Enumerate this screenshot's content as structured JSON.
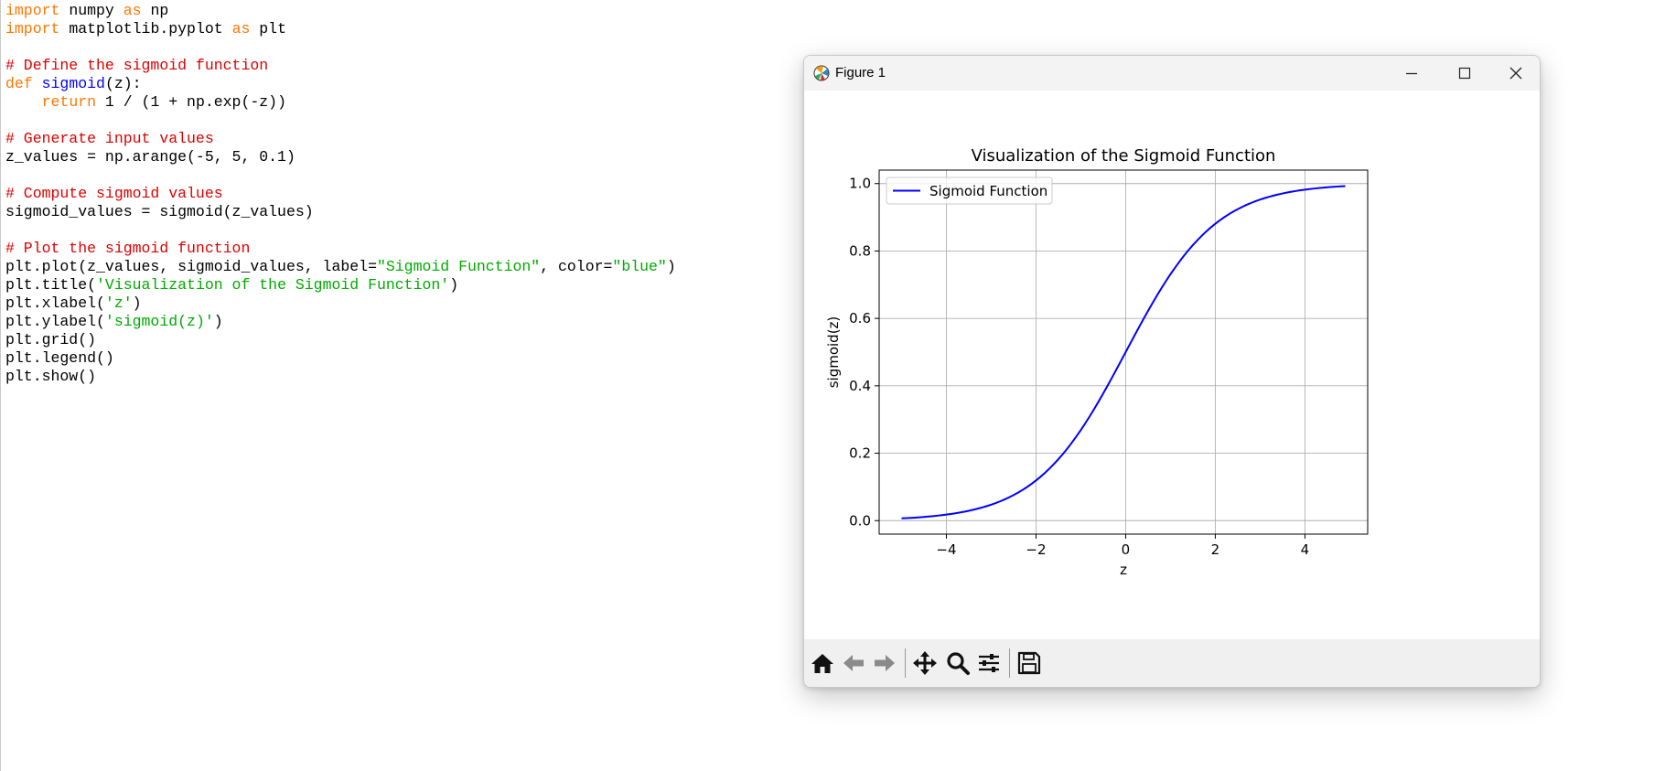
{
  "editor": {
    "lines": [
      [
        [
          "kw",
          "import"
        ],
        [
          "p",
          " numpy "
        ],
        [
          "kw",
          "as"
        ],
        [
          "p",
          " np"
        ]
      ],
      [
        [
          "kw",
          "import"
        ],
        [
          "p",
          " matplotlib.pyplot "
        ],
        [
          "kw",
          "as"
        ],
        [
          "p",
          " plt"
        ]
      ],
      [],
      [
        [
          "cm",
          "# Define the sigmoid function"
        ]
      ],
      [
        [
          "kw",
          "def"
        ],
        [
          "p",
          " "
        ],
        [
          "def",
          "sigmoid"
        ],
        [
          "p",
          "(z):"
        ]
      ],
      [
        [
          "p",
          "    "
        ],
        [
          "kw",
          "return"
        ],
        [
          "p",
          " 1 / (1 + np.exp(-z))"
        ]
      ],
      [],
      [
        [
          "cm",
          "# Generate input values"
        ]
      ],
      [
        [
          "p",
          "z_values = np.arange(-5, 5, 0.1)"
        ]
      ],
      [],
      [
        [
          "cm",
          "# Compute sigmoid values"
        ]
      ],
      [
        [
          "p",
          "sigmoid_values = sigmoid(z_values)"
        ]
      ],
      [],
      [
        [
          "cm",
          "# Plot the sigmoid function"
        ]
      ],
      [
        [
          "p",
          "plt.plot(z_values, sigmoid_values, label="
        ],
        [
          "st",
          "\"Sigmoid Function\""
        ],
        [
          "p",
          ", color="
        ],
        [
          "st",
          "\"blue\""
        ],
        [
          "p",
          ")"
        ]
      ],
      [
        [
          "p",
          "plt.title("
        ],
        [
          "st",
          "'Visualization of the Sigmoid Function'"
        ],
        [
          "p",
          ")"
        ]
      ],
      [
        [
          "p",
          "plt.xlabel("
        ],
        [
          "st",
          "'z'"
        ],
        [
          "p",
          ")"
        ]
      ],
      [
        [
          "p",
          "plt.ylabel("
        ],
        [
          "st",
          "'sigmoid(z)'"
        ],
        [
          "p",
          ")"
        ]
      ],
      [
        [
          "p",
          "plt.grid()"
        ]
      ],
      [
        [
          "p",
          "plt.legend()"
        ]
      ],
      [
        [
          "p",
          "plt.show()"
        ]
      ]
    ]
  },
  "window": {
    "title": "Figure 1"
  },
  "chart_data": {
    "type": "line",
    "title": "Visualization of the Sigmoid Function",
    "xlabel": "z",
    "ylabel": "sigmoid(z)",
    "xlim": [
      -5.5,
      5.4
    ],
    "ylim": [
      -0.04,
      1.04
    ],
    "xticks": [
      -4,
      -2,
      0,
      2,
      4
    ],
    "xtick_labels": [
      "−4",
      "−2",
      "0",
      "2",
      "4"
    ],
    "yticks": [
      0.0,
      0.2,
      0.4,
      0.6,
      0.8,
      1.0
    ],
    "ytick_labels": [
      "0.0",
      "0.2",
      "0.4",
      "0.6",
      "0.8",
      "1.0"
    ],
    "grid": true,
    "legend_position": "upper-left",
    "series": [
      {
        "name": "Sigmoid Function",
        "color": "#0000ff",
        "x_start": -5.0,
        "x_end": 4.9,
        "x_step": 0.1,
        "function": "1 / (1 + exp(-z))"
      }
    ]
  },
  "toolbar": {
    "buttons": [
      "home-icon",
      "back-arrow-icon",
      "forward-arrow-icon",
      "pan-icon",
      "zoom-icon",
      "configure-subplots-icon",
      "save-icon"
    ]
  }
}
